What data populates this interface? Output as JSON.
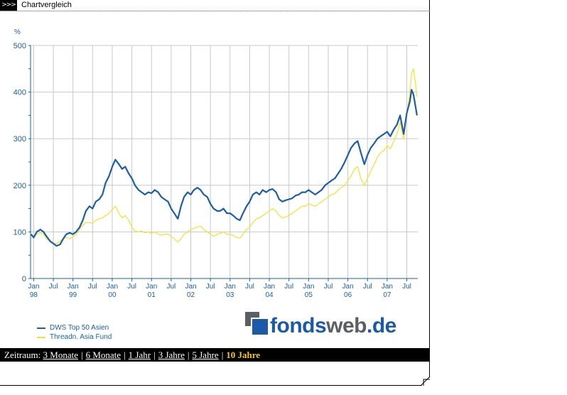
{
  "header": {
    "icon_text": ">>>",
    "title": "Chartvergleich"
  },
  "chart_data": {
    "type": "line",
    "ylabel": "%",
    "ylim": [
      0,
      500
    ],
    "yticks": [
      0,
      100,
      200,
      300,
      400,
      500
    ],
    "xlim": [
      1997.92,
      2007.78
    ],
    "grid": true,
    "legend_position": "bottom-left",
    "x_tick_labels": [
      {
        "x": 1998.0,
        "l1": "Jan",
        "l2": "98"
      },
      {
        "x": 1998.5,
        "l1": "Jul",
        "l2": ""
      },
      {
        "x": 1999.0,
        "l1": "Jan",
        "l2": "99"
      },
      {
        "x": 1999.5,
        "l1": "Jul",
        "l2": ""
      },
      {
        "x": 2000.0,
        "l1": "Jan",
        "l2": "00"
      },
      {
        "x": 2000.5,
        "l1": "Jul",
        "l2": ""
      },
      {
        "x": 2001.0,
        "l1": "Jan",
        "l2": "01"
      },
      {
        "x": 2001.5,
        "l1": "Jul",
        "l2": ""
      },
      {
        "x": 2002.0,
        "l1": "Jan",
        "l2": "02"
      },
      {
        "x": 2002.5,
        "l1": "Jul",
        "l2": ""
      },
      {
        "x": 2003.0,
        "l1": "Jan",
        "l2": "03"
      },
      {
        "x": 2003.5,
        "l1": "Jul",
        "l2": ""
      },
      {
        "x": 2004.0,
        "l1": "Jan",
        "l2": "04"
      },
      {
        "x": 2004.5,
        "l1": "Jul",
        "l2": ""
      },
      {
        "x": 2005.0,
        "l1": "Jan",
        "l2": "05"
      },
      {
        "x": 2005.5,
        "l1": "Jul",
        "l2": ""
      },
      {
        "x": 2006.0,
        "l1": "Jan",
        "l2": "06"
      },
      {
        "x": 2006.5,
        "l1": "Jul",
        "l2": ""
      },
      {
        "x": 2007.0,
        "l1": "Jan",
        "l2": "07"
      },
      {
        "x": 2007.5,
        "l1": "Jul",
        "l2": ""
      }
    ],
    "series": [
      {
        "name": "DWS Top 50 Asien",
        "color": "#1b5fa8",
        "points": [
          [
            1997.93,
            95
          ],
          [
            1998.0,
            88
          ],
          [
            1998.08,
            100
          ],
          [
            1998.17,
            105
          ],
          [
            1998.25,
            100
          ],
          [
            1998.33,
            90
          ],
          [
            1998.42,
            80
          ],
          [
            1998.5,
            75
          ],
          [
            1998.58,
            70
          ],
          [
            1998.67,
            73
          ],
          [
            1998.75,
            85
          ],
          [
            1998.83,
            95
          ],
          [
            1998.92,
            98
          ],
          [
            1999.0,
            95
          ],
          [
            1999.08,
            100
          ],
          [
            1999.17,
            110
          ],
          [
            1999.25,
            125
          ],
          [
            1999.33,
            145
          ],
          [
            1999.42,
            155
          ],
          [
            1999.5,
            150
          ],
          [
            1999.58,
            165
          ],
          [
            1999.67,
            170
          ],
          [
            1999.75,
            180
          ],
          [
            1999.83,
            205
          ],
          [
            1999.92,
            220
          ],
          [
            2000.0,
            240
          ],
          [
            2000.08,
            255
          ],
          [
            2000.17,
            245
          ],
          [
            2000.25,
            235
          ],
          [
            2000.33,
            240
          ],
          [
            2000.42,
            225
          ],
          [
            2000.5,
            215
          ],
          [
            2000.58,
            200
          ],
          [
            2000.67,
            190
          ],
          [
            2000.75,
            185
          ],
          [
            2000.83,
            180
          ],
          [
            2000.92,
            185
          ],
          [
            2001.0,
            183
          ],
          [
            2001.08,
            190
          ],
          [
            2001.17,
            185
          ],
          [
            2001.25,
            175
          ],
          [
            2001.33,
            170
          ],
          [
            2001.42,
            165
          ],
          [
            2001.5,
            150
          ],
          [
            2001.58,
            140
          ],
          [
            2001.67,
            128
          ],
          [
            2001.75,
            155
          ],
          [
            2001.83,
            175
          ],
          [
            2001.92,
            185
          ],
          [
            2002.0,
            180
          ],
          [
            2002.08,
            190
          ],
          [
            2002.17,
            195
          ],
          [
            2002.25,
            190
          ],
          [
            2002.33,
            180
          ],
          [
            2002.42,
            175
          ],
          [
            2002.5,
            160
          ],
          [
            2002.58,
            150
          ],
          [
            2002.67,
            145
          ],
          [
            2002.75,
            145
          ],
          [
            2002.83,
            150
          ],
          [
            2002.92,
            140
          ],
          [
            2003.0,
            140
          ],
          [
            2003.08,
            135
          ],
          [
            2003.17,
            128
          ],
          [
            2003.25,
            125
          ],
          [
            2003.33,
            140
          ],
          [
            2003.42,
            155
          ],
          [
            2003.5,
            165
          ],
          [
            2003.58,
            180
          ],
          [
            2003.67,
            185
          ],
          [
            2003.75,
            180
          ],
          [
            2003.83,
            190
          ],
          [
            2003.92,
            185
          ],
          [
            2004.0,
            190
          ],
          [
            2004.08,
            192
          ],
          [
            2004.17,
            185
          ],
          [
            2004.25,
            170
          ],
          [
            2004.33,
            165
          ],
          [
            2004.42,
            168
          ],
          [
            2004.5,
            170
          ],
          [
            2004.58,
            172
          ],
          [
            2004.67,
            178
          ],
          [
            2004.75,
            180
          ],
          [
            2004.83,
            185
          ],
          [
            2004.92,
            185
          ],
          [
            2005.0,
            190
          ],
          [
            2005.08,
            185
          ],
          [
            2005.17,
            180
          ],
          [
            2005.25,
            185
          ],
          [
            2005.33,
            190
          ],
          [
            2005.42,
            200
          ],
          [
            2005.5,
            205
          ],
          [
            2005.58,
            210
          ],
          [
            2005.67,
            215
          ],
          [
            2005.75,
            225
          ],
          [
            2005.83,
            235
          ],
          [
            2005.92,
            250
          ],
          [
            2006.0,
            265
          ],
          [
            2006.08,
            280
          ],
          [
            2006.17,
            290
          ],
          [
            2006.25,
            295
          ],
          [
            2006.33,
            270
          ],
          [
            2006.42,
            245
          ],
          [
            2006.5,
            265
          ],
          [
            2006.58,
            280
          ],
          [
            2006.67,
            290
          ],
          [
            2006.75,
            300
          ],
          [
            2006.83,
            305
          ],
          [
            2006.92,
            310
          ],
          [
            2007.0,
            315
          ],
          [
            2007.08,
            305
          ],
          [
            2007.17,
            320
          ],
          [
            2007.25,
            330
          ],
          [
            2007.33,
            350
          ],
          [
            2007.42,
            310
          ],
          [
            2007.5,
            355
          ],
          [
            2007.58,
            380
          ],
          [
            2007.62,
            405
          ],
          [
            2007.67,
            395
          ],
          [
            2007.72,
            370
          ],
          [
            2007.76,
            350
          ]
        ]
      },
      {
        "name": "Threadn. Asia Fund",
        "color": "#f5e33c",
        "points": [
          [
            1997.93,
            95
          ],
          [
            1998.0,
            90
          ],
          [
            1998.08,
            95
          ],
          [
            1998.17,
            98
          ],
          [
            1998.25,
            95
          ],
          [
            1998.33,
            85
          ],
          [
            1998.42,
            78
          ],
          [
            1998.5,
            75
          ],
          [
            1998.58,
            75
          ],
          [
            1998.67,
            80
          ],
          [
            1998.75,
            85
          ],
          [
            1998.83,
            88
          ],
          [
            1998.92,
            85
          ],
          [
            1999.0,
            90
          ],
          [
            1999.08,
            95
          ],
          [
            1999.17,
            105
          ],
          [
            1999.25,
            115
          ],
          [
            1999.33,
            120
          ],
          [
            1999.42,
            120
          ],
          [
            1999.5,
            118
          ],
          [
            1999.58,
            125
          ],
          [
            1999.67,
            128
          ],
          [
            1999.75,
            130
          ],
          [
            1999.83,
            135
          ],
          [
            1999.92,
            140
          ],
          [
            2000.0,
            148
          ],
          [
            2000.08,
            155
          ],
          [
            2000.17,
            140
          ],
          [
            2000.25,
            130
          ],
          [
            2000.33,
            135
          ],
          [
            2000.42,
            125
          ],
          [
            2000.5,
            110
          ],
          [
            2000.58,
            102
          ],
          [
            2000.67,
            100
          ],
          [
            2000.75,
            102
          ],
          [
            2000.83,
            98
          ],
          [
            2000.92,
            100
          ],
          [
            2001.0,
            97
          ],
          [
            2001.08,
            100
          ],
          [
            2001.17,
            95
          ],
          [
            2001.25,
            93
          ],
          [
            2001.33,
            95
          ],
          [
            2001.42,
            95
          ],
          [
            2001.5,
            90
          ],
          [
            2001.58,
            85
          ],
          [
            2001.67,
            78
          ],
          [
            2001.75,
            85
          ],
          [
            2001.83,
            95
          ],
          [
            2001.92,
            100
          ],
          [
            2002.0,
            105
          ],
          [
            2002.08,
            108
          ],
          [
            2002.17,
            110
          ],
          [
            2002.25,
            112
          ],
          [
            2002.33,
            105
          ],
          [
            2002.42,
            100
          ],
          [
            2002.5,
            95
          ],
          [
            2002.58,
            90
          ],
          [
            2002.67,
            95
          ],
          [
            2002.75,
            97
          ],
          [
            2002.83,
            100
          ],
          [
            2002.92,
            95
          ],
          [
            2003.0,
            95
          ],
          [
            2003.08,
            92
          ],
          [
            2003.17,
            88
          ],
          [
            2003.25,
            87
          ],
          [
            2003.33,
            95
          ],
          [
            2003.42,
            105
          ],
          [
            2003.5,
            110
          ],
          [
            2003.58,
            120
          ],
          [
            2003.67,
            128
          ],
          [
            2003.75,
            130
          ],
          [
            2003.83,
            135
          ],
          [
            2003.92,
            140
          ],
          [
            2004.0,
            145
          ],
          [
            2004.08,
            150
          ],
          [
            2004.17,
            145
          ],
          [
            2004.25,
            135
          ],
          [
            2004.33,
            130
          ],
          [
            2004.42,
            132
          ],
          [
            2004.5,
            135
          ],
          [
            2004.58,
            140
          ],
          [
            2004.67,
            145
          ],
          [
            2004.75,
            150
          ],
          [
            2004.83,
            155
          ],
          [
            2004.92,
            155
          ],
          [
            2005.0,
            160
          ],
          [
            2005.08,
            158
          ],
          [
            2005.17,
            155
          ],
          [
            2005.25,
            160
          ],
          [
            2005.33,
            165
          ],
          [
            2005.42,
            170
          ],
          [
            2005.5,
            175
          ],
          [
            2005.58,
            180
          ],
          [
            2005.67,
            182
          ],
          [
            2005.75,
            190
          ],
          [
            2005.83,
            195
          ],
          [
            2005.92,
            200
          ],
          [
            2006.0,
            210
          ],
          [
            2006.08,
            220
          ],
          [
            2006.17,
            235
          ],
          [
            2006.25,
            240
          ],
          [
            2006.33,
            215
          ],
          [
            2006.42,
            200
          ],
          [
            2006.5,
            215
          ],
          [
            2006.58,
            230
          ],
          [
            2006.67,
            245
          ],
          [
            2006.75,
            260
          ],
          [
            2006.83,
            270
          ],
          [
            2006.92,
            275
          ],
          [
            2007.0,
            285
          ],
          [
            2007.08,
            278
          ],
          [
            2007.17,
            295
          ],
          [
            2007.25,
            310
          ],
          [
            2007.33,
            335
          ],
          [
            2007.42,
            300
          ],
          [
            2007.5,
            350
          ],
          [
            2007.58,
            400
          ],
          [
            2007.62,
            440
          ],
          [
            2007.67,
            450
          ],
          [
            2007.72,
            420
          ],
          [
            2007.76,
            390
          ]
        ]
      }
    ]
  },
  "logo": {
    "text_a": "fonds",
    "text_b": "web",
    "text_c": ".de",
    "color_a": "#1a5aa8",
    "color_b": "#5a5f66"
  },
  "zeitraum": {
    "label": "Zeitraum:",
    "options": [
      {
        "label": "3 Monate",
        "active": false
      },
      {
        "label": "6 Monate",
        "active": false
      },
      {
        "label": "1 Jahr",
        "active": false
      },
      {
        "label": "3 Jahre",
        "active": false
      },
      {
        "label": "5 Jahre",
        "active": false
      },
      {
        "label": "10 Jahre",
        "active": true
      }
    ]
  }
}
